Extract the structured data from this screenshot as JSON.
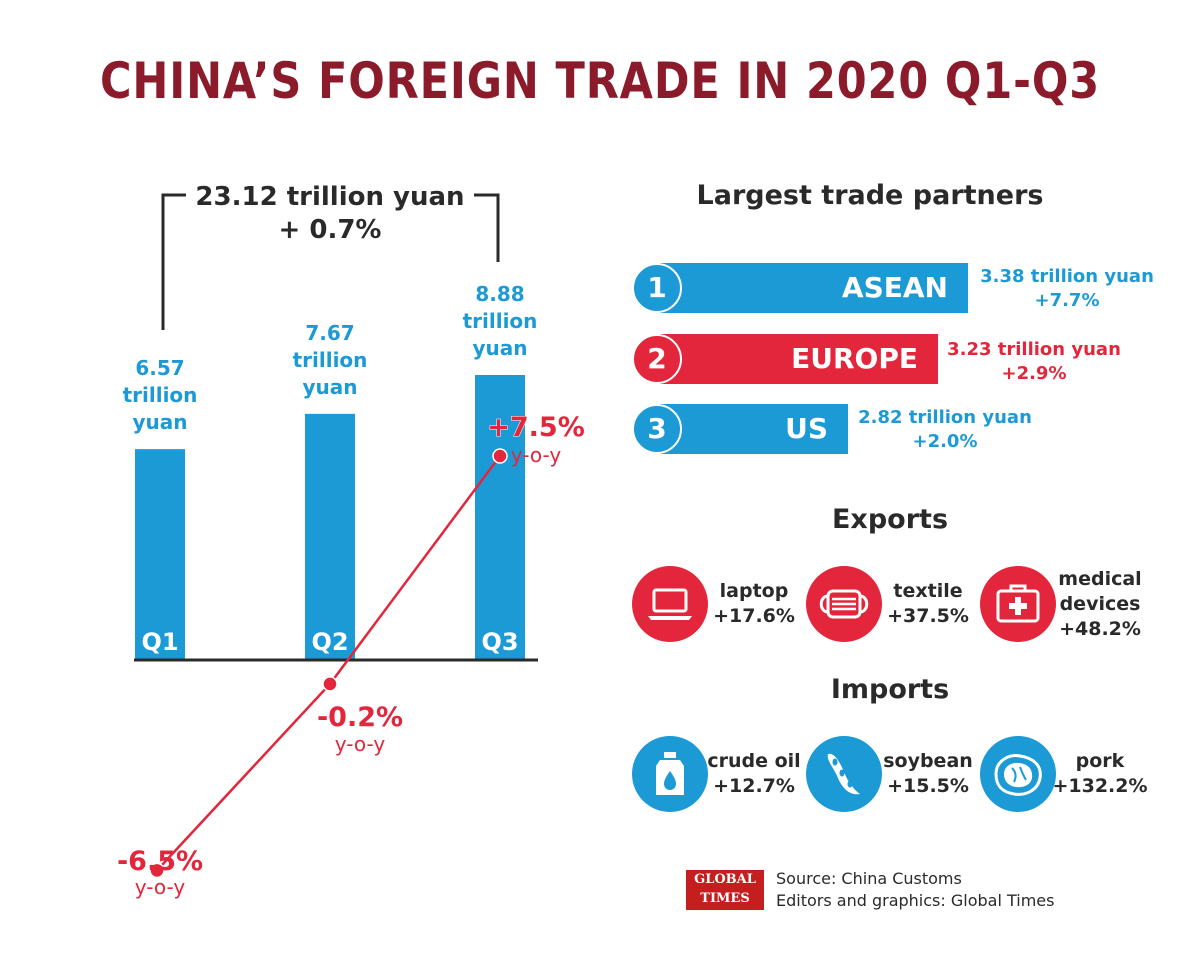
{
  "title": "CHINA’S FOREIGN TRADE IN 2020 Q1-Q3",
  "colors": {
    "blue": "#1c9ad6",
    "red": "#e3263b",
    "title": "#8b1a2b",
    "text": "#2a2a2a"
  },
  "chart_data": {
    "type": "bar",
    "categories": [
      "Q1",
      "Q2",
      "Q3"
    ],
    "values": [
      6.57,
      7.67,
      8.88
    ],
    "value_labels": [
      [
        "6.57",
        "trillion",
        "yuan"
      ],
      [
        "7.67",
        "trillion",
        "yuan"
      ],
      [
        "8.88",
        "trillion",
        "yuan"
      ]
    ],
    "line_series": {
      "values": [
        -6.5,
        -0.2,
        7.5
      ],
      "labels": [
        "-6.5%",
        "-0.2%",
        "+7.5%"
      ],
      "sublabel": "y-o-y"
    },
    "total_label": "23.12 trillion yuan",
    "total_change": "+ 0.7%"
  },
  "partners": {
    "title": "Largest trade partners",
    "items": [
      {
        "rank": "1",
        "name": "ASEAN",
        "value": "3.38 trillion yuan",
        "change": "+7.7%",
        "color": "#1c9ad6"
      },
      {
        "rank": "2",
        "name": "EUROPE",
        "value": "3.23 trillion yuan",
        "change": "+2.9%",
        "color": "#e3263b"
      },
      {
        "rank": "3",
        "name": "US",
        "value": "2.82 trillion yuan",
        "change": "+2.0%",
        "color": "#1c9ad6"
      }
    ]
  },
  "exports": {
    "title": "Exports",
    "items": [
      {
        "name": "laptop",
        "change": "+17.6%",
        "icon": "laptop-icon"
      },
      {
        "name": "textile",
        "change": "+37.5%",
        "icon": "mask-icon"
      },
      {
        "name_line1": "medical",
        "name_line2": "devices",
        "change": "+48.2%",
        "icon": "medical-kit-icon"
      }
    ]
  },
  "imports": {
    "title": "Imports",
    "items": [
      {
        "name": "crude oil",
        "change": "+12.7%",
        "icon": "oil-can-icon"
      },
      {
        "name": "soybean",
        "change": "+15.5%",
        "icon": "soybean-icon"
      },
      {
        "name": "pork",
        "change": "+132.2%",
        "icon": "pork-icon"
      }
    ]
  },
  "footer": {
    "logo_line1": "GLOBAL",
    "logo_line2": "TIMES",
    "source": "Source: China Customs",
    "editors": "Editors and graphics: Global Times"
  }
}
